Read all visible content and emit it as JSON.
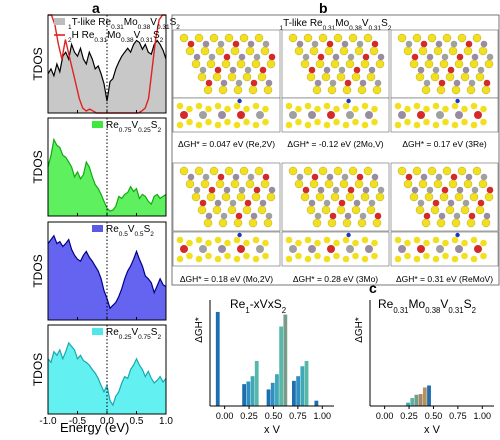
{
  "panel_letters": {
    "a": "a",
    "b": "b",
    "c": "c"
  },
  "tdos_axis": {
    "ylabel": "TDOS",
    "xlabel": "Energy (eV)",
    "xticks": [
      "-1.0",
      "-0.5",
      "0.0",
      "0.5",
      "1.0"
    ]
  },
  "tdos_panels": [
    {
      "legend": [
        {
          "name": "1T-like Re0.31Mo0.38V0.31S2",
          "color": "#bdbdbd",
          "fill": "#bdbdbd"
        },
        {
          "name": "2H Re0.31Mo0.38V0.31S2",
          "color": "#e0221f",
          "fill": "none"
        }
      ],
      "fill": "#c8c8c8"
    },
    {
      "legend": [
        {
          "name": "Re0.75V0.25S2",
          "color": "#3ee83e",
          "fill": "#3ee83e"
        }
      ],
      "fill": "#5ef05e"
    },
    {
      "legend": [
        {
          "name": "Re0.5V0.5S2",
          "color": "#5a5ae8",
          "fill": "#5a5ae8"
        }
      ],
      "fill": "#6464f0"
    },
    {
      "legend": [
        {
          "name": "Re0.25V0.75S2",
          "color": "#4ee8ea",
          "fill": "#4ee8ea"
        }
      ],
      "fill": "#62f0f0"
    }
  ],
  "structures": {
    "title": "1T-like Re0.31Mo0.38V0.31S2",
    "captions": [
      "ΔGH* = 0.047 eV (Re,2V)",
      "ΔGH* = -0.12 eV (2Mo,V)",
      "ΔGH* = 0.17 eV (3Re)",
      "ΔGH* = 0.18 eV (Mo,2V)",
      "ΔGH* = 0.28 eV (3Mo)",
      "ΔGH* = 0.31 eV (ReMoV)"
    ],
    "atom_colors": {
      "S": "#f2e020",
      "Re": "#d42a2a",
      "Mo": "#9a8ca0",
      "V": "#a0a0a0",
      "H": "#1a36c8"
    }
  },
  "chart_data": [
    {
      "type": "bar",
      "title": "Re1-xVxS2",
      "ylabel": "ΔGH*",
      "xlabel": "xV",
      "xticks": [
        "0.00",
        "0.25",
        "0.50",
        "0.75",
        "1.00"
      ],
      "xlim": [
        -0.15,
        1.12
      ],
      "ylim": [
        0,
        1.6
      ],
      "bars": [
        {
          "x": -0.09,
          "values": [
            1.42
          ]
        },
        {
          "x": 0.18,
          "values": [
            0.33,
            0.37,
            0.45,
            0.68
          ]
        },
        {
          "x": 0.43,
          "values": [
            0.25,
            0.35,
            0.48,
            1.2,
            1.38
          ]
        },
        {
          "x": 0.69,
          "values": [
            0.38,
            0.45,
            0.6,
            0.68
          ]
        },
        {
          "x": 0.92,
          "values": [
            0.08
          ]
        }
      ]
    },
    {
      "type": "bar",
      "title": "Re0.31Mo0.38V0.31S2",
      "ylabel": "ΔGH*",
      "xlabel": "xV",
      "xticks": [
        "0.00",
        "0.25",
        "0.50",
        "0.75",
        "1.00"
      ],
      "xlim": [
        -0.15,
        1.12
      ],
      "ylim": [
        0,
        1.6
      ],
      "bars": [
        {
          "x": 0.22,
          "values": [
            0.05,
            0.12,
            0.17,
            0.18,
            0.28,
            0.31
          ]
        }
      ]
    }
  ],
  "bar_palette": [
    "#1c6eb0",
    "#2f8fc0",
    "#3fa8b8",
    "#55b8a8",
    "#7a9a8a",
    "#a08a64",
    "#b89060"
  ]
}
